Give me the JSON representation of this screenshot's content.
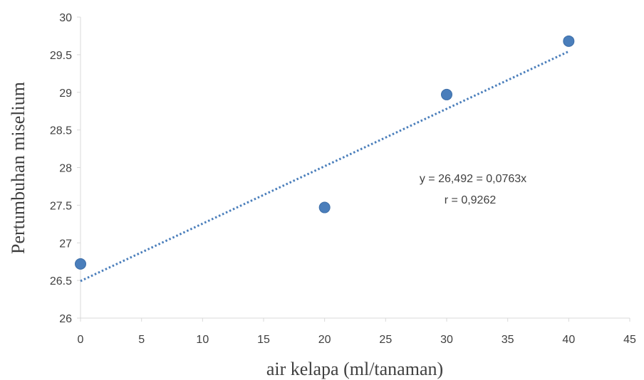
{
  "chart_data": {
    "type": "scatter",
    "title": "",
    "xlabel": "air kelapa  (ml/tanaman)",
    "ylabel": "Pertumbuhan miselium",
    "xlim": [
      0,
      45
    ],
    "ylim": [
      26,
      30
    ],
    "x_ticks": [
      0,
      5,
      10,
      15,
      20,
      25,
      30,
      35,
      40,
      45
    ],
    "y_ticks": [
      26,
      26.5,
      27,
      27.5,
      28,
      28.5,
      29,
      29.5,
      30
    ],
    "grid": false,
    "legend": "none",
    "series": [
      {
        "x": [
          0,
          20,
          30,
          40
        ],
        "y": [
          26.72,
          27.47,
          28.97,
          29.68
        ],
        "color": "#4a7ebb"
      }
    ],
    "trendline": {
      "type": "linear",
      "intercept": 26.492,
      "slope": 0.0763,
      "x_range": [
        0,
        40
      ],
      "style": "dotted",
      "color": "#4a7ebb"
    },
    "annotations": [
      "y = 26,492 = 0,0763x",
      "r  = 0,9262"
    ]
  }
}
